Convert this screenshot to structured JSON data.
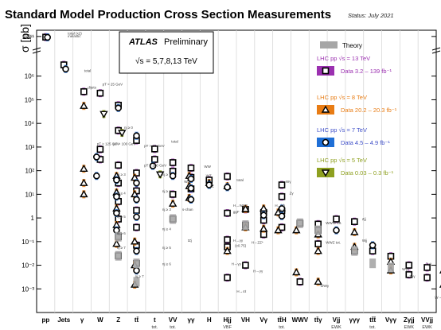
{
  "chart_data": {
    "type": "scatter",
    "title": "Standard Model Production Cross Section Measurements",
    "status": "Status: July 2021",
    "ylabel": "σ [pb]",
    "yscale": "log",
    "ylim": [
      0.0001,
      300000000000
    ],
    "y_ticks": [
      {
        "value": 0.001,
        "label": "10⁻³"
      },
      {
        "value": 0.01,
        "label": "10⁻²"
      },
      {
        "value": 0.1,
        "label": "10⁻¹"
      },
      {
        "value": 1,
        "label": "1"
      },
      {
        "value": 10,
        "label": "10¹"
      },
      {
        "value": 100,
        "label": "10²"
      },
      {
        "value": 1000,
        "label": "10³"
      },
      {
        "value": 10000,
        "label": "10⁴"
      },
      {
        "value": 100000,
        "label": "10⁵"
      },
      {
        "value": 1000000,
        "label": "10⁶"
      },
      {
        "value": 100000000000,
        "label": "10¹¹"
      }
    ],
    "categories": [
      "pp",
      "Jets",
      "γ",
      "W",
      "Z",
      "tt̄",
      "t",
      "VV",
      "γγ",
      "H",
      "Hjj",
      "VH",
      "Vγ",
      "tt̄H",
      "WWV",
      "tt̄γ",
      "Vjj",
      "γγγ",
      "tt̄t̄",
      "Vγγ",
      "Zγjj",
      "VVjj"
    ],
    "category_sublabels": [
      {
        "category": "t",
        "text": "tot."
      },
      {
        "category": "VV",
        "text": "tot."
      },
      {
        "category": "Hjj",
        "text": "VBF"
      },
      {
        "category": "tt̄H",
        "text": "tot."
      },
      {
        "category": "Vjj",
        "text": "EWK"
      },
      {
        "category": "tt̄t̄",
        "text": "tot."
      },
      {
        "category": "Zγjj",
        "text": "EWK"
      },
      {
        "category": "VVjj",
        "text": "EWK"
      }
    ],
    "legend": {
      "atlas": "ATLAS",
      "preliminary": "Preliminary",
      "energies": "√s = 5,7,8,13 TeV",
      "theory": "Theory",
      "entries": [
        {
          "heading": "LHC pp  √s = 13 TeV",
          "data": "Data  3.2 – 139 fb⁻¹",
          "color": "#9b30b0",
          "marker": "square"
        },
        {
          "heading": "LHC pp  √s = 8 TeV",
          "data": "Data  20.2 – 20.3 fb⁻¹",
          "color": "#e87c14",
          "marker": "triangle"
        },
        {
          "heading": "LHC pp  √s = 7 TeV",
          "data": "Data  4.5 – 4.9 fb⁻¹",
          "color": "#3f4fc8",
          "marker": "circle"
        },
        {
          "heading": "LHC pp  √s = 5 TeV",
          "data": "Data  0.03 – 0.3 fb⁻¹",
          "color": "#8ea020",
          "marker": "invtriangle"
        }
      ]
    },
    "colors": {
      "s13": "#9b30b0",
      "s8": "#e87c14",
      "s7": "#1f6fd6",
      "s5": "#8ea020",
      "theory": "#a6a6a6"
    },
    "annotations": [
      {
        "text": "total (x2)",
        "x": 1.0,
        "y": 200000000000
      },
      {
        "text": "inelastic",
        "x": 1.0,
        "y": 70000000000
      },
      {
        "text": "total",
        "x": 1.9,
        "y": 1500000
      },
      {
        "text": "dijets",
        "x": 2.1,
        "y": 300000
      },
      {
        "text": "pT > 25 GeV",
        "x": 2.9,
        "y": 400000
      },
      {
        "text": "nj ≥ 0",
        "x": 4.1,
        "y": 6000
      },
      {
        "text": "pT > 125 GeV",
        "x": 2.6,
        "y": 1200
      },
      {
        "text": "pT > 100 GeV",
        "x": 3.5,
        "y": 1200
      },
      {
        "text": "pT > 30 GeV",
        "x": 5.2,
        "y": 1000
      },
      {
        "text": "pT > 100 GeV",
        "x": 5.2,
        "y": 150
      },
      {
        "text": "nj ≥ 3",
        "x": 3.7,
        "y": 60
      },
      {
        "text": "nj ≥ 4",
        "x": 3.7,
        "y": 10
      },
      {
        "text": "nj ≥ 5",
        "x": 3.7,
        "y": 1
      },
      {
        "text": "nj ≥ 6",
        "x": 3.7,
        "y": 0.2
      },
      {
        "text": "nj ≥ 7",
        "x": 3.7,
        "y": 0.05
      },
      {
        "text": "nj ≥ 7",
        "x": 4.7,
        "y": 0.003
      },
      {
        "text": "nj ≥ 1",
        "x": 6.2,
        "y": 60
      },
      {
        "text": "nj ≥ 2",
        "x": 6.2,
        "y": 12
      },
      {
        "text": "nj ≥ 3",
        "x": 6.2,
        "y": 2
      },
      {
        "text": "nj ≥ 4",
        "x": 6.2,
        "y": 0.3
      },
      {
        "text": "nj ≥ 5",
        "x": 6.2,
        "y": 0.05
      },
      {
        "text": "nj ≥ 6",
        "x": 6.2,
        "y": 0.01
      },
      {
        "text": "total",
        "x": 6.7,
        "y": 1500
      },
      {
        "text": "s-chan",
        "x": 7.3,
        "y": 2
      },
      {
        "text": "Wt",
        "x": 7.4,
        "y": 30
      },
      {
        "text": "tZj",
        "x": 7.6,
        "y": 0.1
      },
      {
        "text": "WW",
        "x": 8.5,
        "y": 130
      },
      {
        "text": "WZ",
        "x": 8.6,
        "y": 55
      },
      {
        "text": "ZZ",
        "x": 8.8,
        "y": 20
      },
      {
        "text": "total",
        "x": 10.3,
        "y": 35
      },
      {
        "text": "H→WW*",
        "x": 10.1,
        "y": 3
      },
      {
        "text": "ggF",
        "x": 10.1,
        "y": 1.6
      },
      {
        "text": "H→γγ",
        "x": 10.1,
        "y": 0.1
      },
      {
        "text": "(x0.75)",
        "x": 10.2,
        "y": 0.06
      },
      {
        "text": "H→γγ",
        "x": 10.0,
        "y": 0.01
      },
      {
        "text": "H→4ℓ",
        "x": 10.3,
        "y": 0.0007
      },
      {
        "text": "H→ZZ*",
        "x": 11.1,
        "y": 0.08
      },
      {
        "text": "H→bb",
        "x": 12.4,
        "y": 3
      },
      {
        "text": "(x0.5)",
        "x": 12.5,
        "y": 1.8
      },
      {
        "text": "H→γγ",
        "x": 11.2,
        "y": 0.005
      },
      {
        "text": "Wγ",
        "x": 13.0,
        "y": 30
      },
      {
        "text": "Zγ",
        "x": 13.2,
        "y": 10
      },
      {
        "text": "WWW tot.",
        "x": 15.2,
        "y": 0.55
      },
      {
        "text": "WWZ tot.",
        "x": 15.2,
        "y": 0.08
      },
      {
        "text": "WWγ",
        "x": 14.9,
        "y": 0.0012
      },
      {
        "text": "Zjj",
        "x": 17.2,
        "y": 0.8
      },
      {
        "text": "Wjj",
        "x": 17.2,
        "y": 0.1
      },
      {
        "text": "Wγγ",
        "x": 19.4,
        "y": 0.006
      },
      {
        "text": "Zγγ",
        "x": 19.8,
        "y": 0.003
      },
      {
        "text": "Zγjj",
        "x": 20.7,
        "y": 0.01
      },
      {
        "text": "γγ→WW",
        "x": 21.2,
        "y": 0.0004
      },
      {
        "text": "W±W±",
        "x": 21.9,
        "y": 0.004
      },
      {
        "text": "WZ",
        "x": 22.0,
        "y": 0.0025
      }
    ],
    "series": [
      {
        "name": "LHC pp  √s = 13 TeV",
        "marker": "square",
        "points": [
          {
            "x": 0,
            "y": 78000000000
          },
          {
            "x": 1,
            "y": 3000000
          },
          {
            "x": 2.1,
            "y": 220000
          },
          {
            "x": 3.0,
            "y": 190000
          },
          {
            "x": 3.0,
            "y": 800
          },
          {
            "x": 3.0,
            "y": 300
          },
          {
            "x": 4.0,
            "y": 59000
          },
          {
            "x": 4.0,
            "y": 5000
          },
          {
            "x": 4.0,
            "y": 170
          },
          {
            "x": 4.0,
            "y": 30
          },
          {
            "x": 4.0,
            "y": 5
          },
          {
            "x": 4.0,
            "y": 0.9
          },
          {
            "x": 4.0,
            "y": 0.16
          },
          {
            "x": 4.0,
            "y": 0.025
          },
          {
            "x": 5.0,
            "y": 1900
          },
          {
            "x": 5.0,
            "y": 80
          },
          {
            "x": 5.0,
            "y": 14
          },
          {
            "x": 5.0,
            "y": 2.1
          },
          {
            "x": 5.0,
            "y": 0.4
          },
          {
            "x": 5.0,
            "y": 0.07
          },
          {
            "x": 5.0,
            "y": 0.012
          },
          {
            "x": 6.0,
            "y": 830
          },
          {
            "x": 6.0,
            "y": 300
          },
          {
            "x": 7.0,
            "y": 220
          },
          {
            "x": 7.0,
            "y": 95
          },
          {
            "x": 7.0,
            "y": 10
          },
          {
            "x": 7.0,
            "y": 0.9
          },
          {
            "x": 8.0,
            "y": 130
          },
          {
            "x": 8.0,
            "y": 52
          },
          {
            "x": 8.0,
            "y": 17
          },
          {
            "x": 9.0,
            "y": 40
          },
          {
            "x": 10.0,
            "y": 57
          },
          {
            "x": 10.0,
            "y": 1.6
          },
          {
            "x": 10.0,
            "y": 0.12
          },
          {
            "x": 10.0,
            "y": 0.06
          },
          {
            "x": 10.0,
            "y": 0.003
          },
          {
            "x": 11.0,
            "y": 2.3
          },
          {
            "x": 11.0,
            "y": 0.5
          },
          {
            "x": 11.0,
            "y": 0.01
          },
          {
            "x": 12.0,
            "y": 1.7
          },
          {
            "x": 12.0,
            "y": 0.8
          },
          {
            "x": 12.0,
            "y": 0.2
          },
          {
            "x": 13.0,
            "y": 25
          },
          {
            "x": 13.0,
            "y": 8
          },
          {
            "x": 13.0,
            "y": 2
          },
          {
            "x": 13.0,
            "y": 0.4
          },
          {
            "x": 14.0,
            "y": 0.6
          },
          {
            "x": 14.0,
            "y": 0.002
          },
          {
            "x": 15.0,
            "y": 0.3
          },
          {
            "x": 15.0,
            "y": 0.55
          },
          {
            "x": 15.0,
            "y": 0.08
          },
          {
            "x": 16.0,
            "y": 0.9
          },
          {
            "x": 17.0,
            "y": 0.7
          },
          {
            "x": 17.0,
            "y": 0.04
          },
          {
            "x": 18.0,
            "y": 0.04
          },
          {
            "x": 19.0,
            "y": 0.024
          },
          {
            "x": 20.0,
            "y": 0.01
          },
          {
            "x": 20.0,
            "y": 0.004
          },
          {
            "x": 21.0,
            "y": 0.008
          },
          {
            "x": 21.0,
            "y": 0.003
          },
          {
            "x": 22.0,
            "y": 0.004
          },
          {
            "x": 22.0,
            "y": 0.0005
          }
        ]
      },
      {
        "name": "LHC pp  √s = 8 TeV",
        "marker": "triangle",
        "points": [
          {
            "x": 2.1,
            "y": 55000
          },
          {
            "x": 2.1,
            "y": 120
          },
          {
            "x": 2.1,
            "y": 30
          },
          {
            "x": 2.1,
            "y": 10
          },
          {
            "x": 3.9,
            "y": 60
          },
          {
            "x": 3.9,
            "y": 12
          },
          {
            "x": 3.9,
            "y": 2.5
          },
          {
            "x": 3.9,
            "y": 0.5
          },
          {
            "x": 3.9,
            "y": 0.08
          },
          {
            "x": 4.9,
            "y": 50
          },
          {
            "x": 4.9,
            "y": 10
          },
          {
            "x": 4.9,
            "y": 0.1
          },
          {
            "x": 4.9,
            "y": 0.01
          },
          {
            "x": 4.9,
            "y": 0.0015
          },
          {
            "x": 7.0,
            "y": 4
          },
          {
            "x": 7.9,
            "y": 60
          },
          {
            "x": 7.9,
            "y": 22
          },
          {
            "x": 7.9,
            "y": 7
          },
          {
            "x": 9.0,
            "y": 30
          },
          {
            "x": 10.0,
            "y": 22
          },
          {
            "x": 10.0,
            "y": 0.04
          },
          {
            "x": 11.0,
            "y": 2.4
          },
          {
            "x": 11.0,
            "y": 0.4
          },
          {
            "x": 12.0,
            "y": 2.5
          },
          {
            "x": 12.0,
            "y": 0.35
          },
          {
            "x": 12.8,
            "y": 1.7
          },
          {
            "x": 12.8,
            "y": 0.3
          },
          {
            "x": 13.8,
            "y": 0.3
          },
          {
            "x": 13.8,
            "y": 0.005
          },
          {
            "x": 15.0,
            "y": 0.2
          },
          {
            "x": 15.0,
            "y": 0.04
          },
          {
            "x": 15.0,
            "y": 0.002
          },
          {
            "x": 17.0,
            "y": 0.25
          },
          {
            "x": 17.0,
            "y": 0.06
          },
          {
            "x": 19.0,
            "y": 0.014
          },
          {
            "x": 19.0,
            "y": 0.006
          },
          {
            "x": 21.9,
            "y": 0.006
          },
          {
            "x": 21.9,
            "y": 0.0015
          }
        ]
      },
      {
        "name": "LHC pp  √s = 7 TeV",
        "marker": "circle",
        "points": [
          {
            "x": 0.1,
            "y": 73000000000
          },
          {
            "x": 1.1,
            "y": 2000000
          },
          {
            "x": 2.8,
            "y": 380
          },
          {
            "x": 2.8,
            "y": 60
          },
          {
            "x": 4.0,
            "y": 45000
          },
          {
            "x": 3.9,
            "y": 40
          },
          {
            "x": 3.9,
            "y": 8
          },
          {
            "x": 3.9,
            "y": 1.6
          },
          {
            "x": 3.9,
            "y": 0.3
          },
          {
            "x": 5.0,
            "y": 3000
          },
          {
            "x": 5.0,
            "y": 30
          },
          {
            "x": 5.0,
            "y": 6
          },
          {
            "x": 5.0,
            "y": 1.1
          },
          {
            "x": 5.0,
            "y": 0.04
          },
          {
            "x": 5.0,
            "y": 0.006
          },
          {
            "x": 5.9,
            "y": 160
          },
          {
            "x": 7.0,
            "y": 60
          },
          {
            "x": 8.0,
            "y": 45
          },
          {
            "x": 8.0,
            "y": 18
          },
          {
            "x": 8.0,
            "y": 6
          },
          {
            "x": 9.0,
            "y": 25
          },
          {
            "x": 10.0,
            "y": 20
          },
          {
            "x": 12.0,
            "y": 1.3
          },
          {
            "x": 13.0,
            "y": 2.5
          },
          {
            "x": 13.0,
            "y": 1.2
          },
          {
            "x": 16.0,
            "y": 0.3
          },
          {
            "x": 18.0,
            "y": 0.07
          }
        ]
      },
      {
        "name": "LHC pp  √s = 5 TeV",
        "marker": "invtriangle",
        "points": [
          {
            "x": 3.2,
            "y": 25000
          },
          {
            "x": 4.2,
            "y": 4000
          },
          {
            "x": 6.3,
            "y": 70
          }
        ]
      },
      {
        "name": "Theory",
        "marker": "bar",
        "points": [
          {
            "x": 4.0,
            "y": 0.16
          },
          {
            "x": 4.0,
            "y": 0.025
          },
          {
            "x": 5.0,
            "y": 0.012
          },
          {
            "x": 5.0,
            "y": 0.002
          },
          {
            "x": 7.0,
            "y": 0.9
          },
          {
            "x": 11.0,
            "y": 0.5
          },
          {
            "x": 14.0,
            "y": 0.6
          },
          {
            "x": 15.0,
            "y": 0.3
          },
          {
            "x": 17.0,
            "y": 0.04
          },
          {
            "x": 18.0,
            "y": 0.012
          },
          {
            "x": 19.0,
            "y": 0.008
          },
          {
            "x": 22.0,
            "y": 0.0005
          }
        ]
      }
    ]
  }
}
